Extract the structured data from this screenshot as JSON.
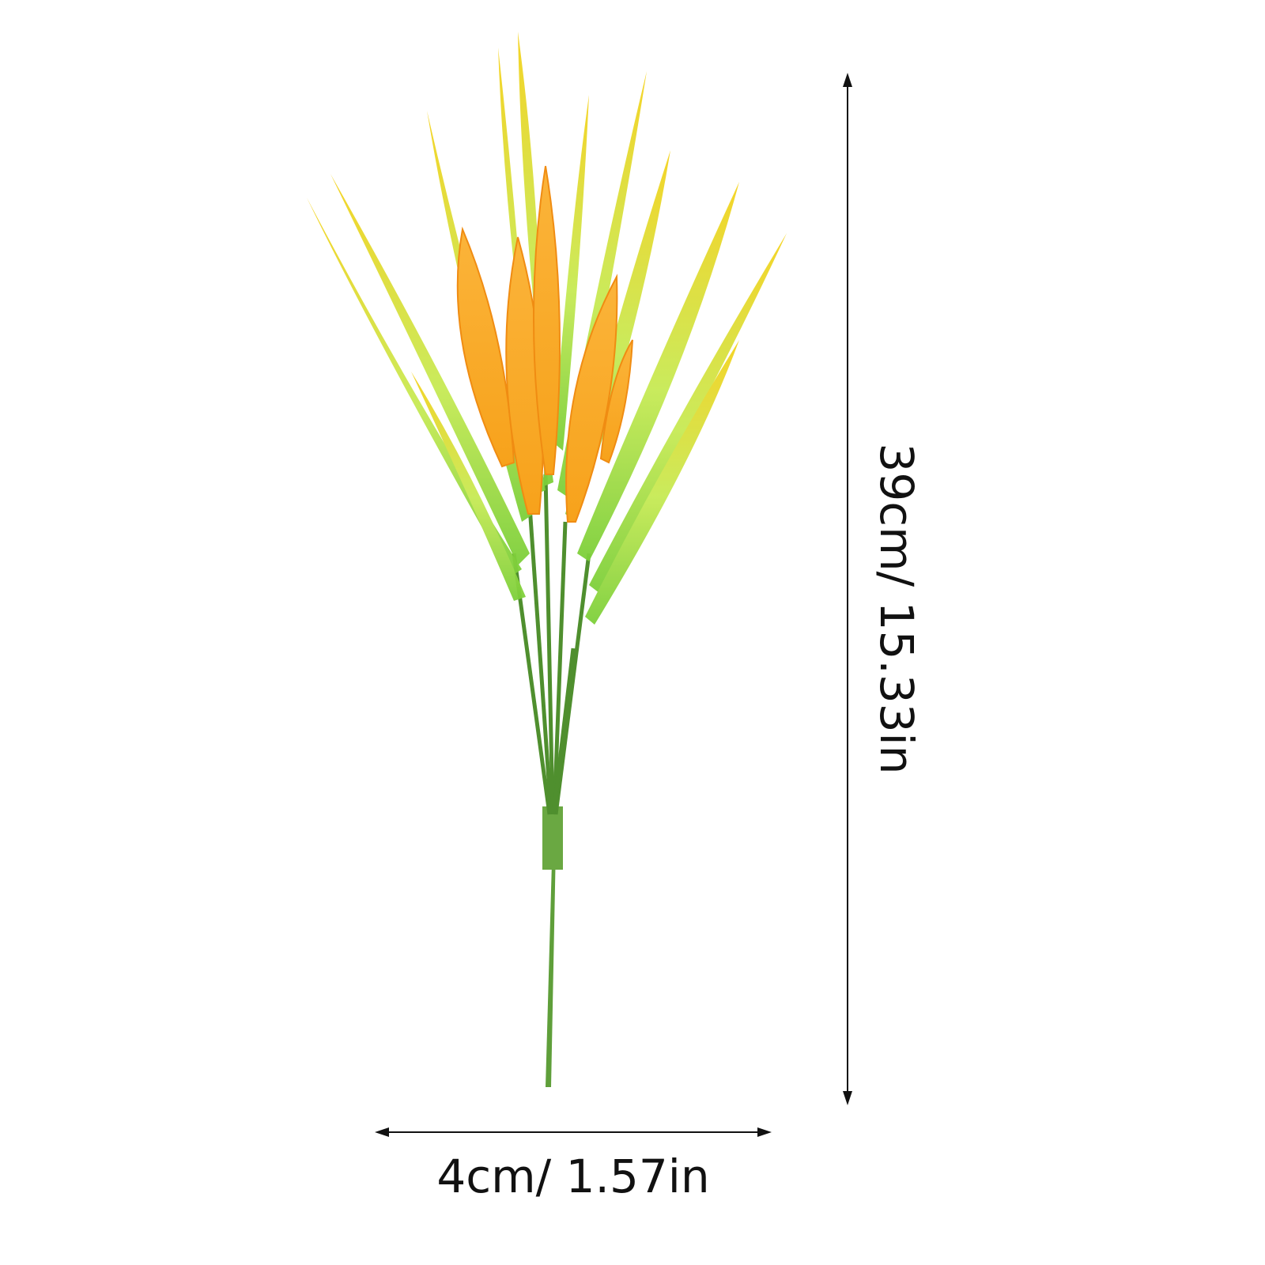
{
  "dimensions": {
    "height": "39cm/ 15.33in",
    "width": "4cm/ 1.57in"
  }
}
